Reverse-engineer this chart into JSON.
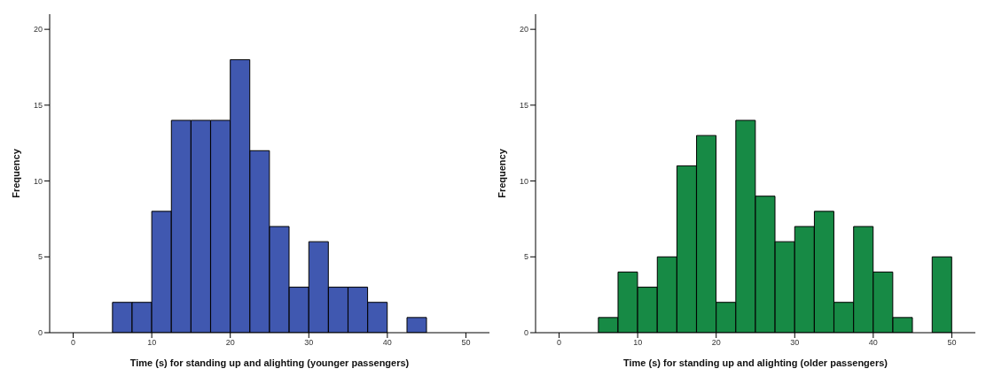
{
  "chart_data": [
    {
      "type": "histogram",
      "xlabel": "Time (s) for standing up and alighting (younger passengers)",
      "ylabel": "Frequency",
      "bins": [
        5,
        7.5,
        10,
        12.5,
        15,
        17.5,
        20,
        22.5,
        25,
        27.5,
        30,
        32.5,
        35,
        37.5,
        40,
        42.5,
        45
      ],
      "values": [
        2,
        2,
        8,
        14,
        14,
        14,
        18,
        12,
        7,
        3,
        6,
        3,
        3,
        2,
        0,
        1
      ],
      "color": "#4058b0",
      "xlim": [
        -3,
        53
      ],
      "xticks": [
        0,
        10,
        20,
        30,
        40,
        50
      ],
      "ylim": [
        0,
        21
      ],
      "yticks": [
        0,
        5,
        10,
        15,
        20
      ],
      "grid": false
    },
    {
      "type": "histogram",
      "xlabel": "Time (s) for standing up and alighting (older passengers)",
      "ylabel": "Frequency",
      "bins": [
        5,
        7.5,
        10,
        12.5,
        15,
        17.5,
        20,
        22.5,
        25,
        27.5,
        30,
        32.5,
        35,
        37.5,
        40,
        42.5,
        45,
        47.5,
        50
      ],
      "values": [
        1,
        4,
        3,
        5,
        11,
        13,
        2,
        14,
        9,
        6,
        7,
        8,
        2,
        7,
        4,
        1,
        0,
        5
      ],
      "color": "#178a45",
      "xlim": [
        -3,
        53
      ],
      "xticks": [
        0,
        10,
        20,
        30,
        40,
        50
      ],
      "ylim": [
        0,
        21
      ],
      "yticks": [
        0,
        5,
        10,
        15,
        20
      ],
      "grid": false
    }
  ]
}
